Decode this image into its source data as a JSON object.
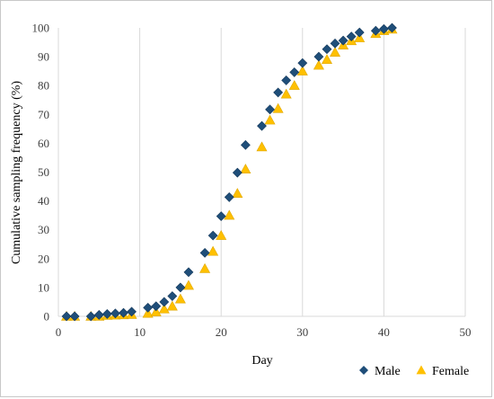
{
  "chart_data": {
    "type": "scatter",
    "xlabel": "Day",
    "ylabel": "Cumulative sampling frequency (%)",
    "xlim": [
      0,
      50
    ],
    "ylim": [
      0,
      100
    ],
    "x_ticks": [
      0,
      10,
      20,
      30,
      40,
      50
    ],
    "y_ticks": [
      0,
      10,
      20,
      30,
      40,
      50,
      60,
      70,
      80,
      90,
      100
    ],
    "grid": "vertical",
    "legend_position": "bottom-right",
    "series": [
      {
        "name": "Male",
        "marker": "diamond",
        "color": "#1f4e79",
        "points": [
          [
            1,
            0
          ],
          [
            2,
            0
          ],
          [
            4,
            0
          ],
          [
            5,
            0.5
          ],
          [
            6,
            0.8
          ],
          [
            7,
            1
          ],
          [
            8,
            1.2
          ],
          [
            9,
            1.6
          ],
          [
            11,
            3
          ],
          [
            12,
            3.5
          ],
          [
            13,
            5
          ],
          [
            14,
            7
          ],
          [
            15,
            10
          ],
          [
            16,
            15.3
          ],
          [
            18,
            22
          ],
          [
            19,
            28
          ],
          [
            20,
            34.7
          ],
          [
            21,
            41.3
          ],
          [
            22,
            49.8
          ],
          [
            23,
            59.4
          ],
          [
            25,
            66
          ],
          [
            26,
            71.7
          ],
          [
            27,
            77.6
          ],
          [
            28,
            81.8
          ],
          [
            29,
            84.6
          ],
          [
            30,
            87.8
          ],
          [
            32,
            90
          ],
          [
            33,
            92.6
          ],
          [
            34,
            94.6
          ],
          [
            35,
            95.6
          ],
          [
            36,
            97
          ],
          [
            37,
            98.4
          ],
          [
            39,
            99
          ],
          [
            40,
            99.6
          ],
          [
            41,
            100
          ]
        ]
      },
      {
        "name": "Female",
        "marker": "triangle",
        "color": "#ffc000",
        "points": [
          [
            1,
            0
          ],
          [
            2,
            0
          ],
          [
            4,
            0
          ],
          [
            5,
            0
          ],
          [
            6,
            0.3
          ],
          [
            7,
            0.4
          ],
          [
            8,
            0.5
          ],
          [
            9,
            0.6
          ],
          [
            11,
            1
          ],
          [
            12,
            1.5
          ],
          [
            13,
            2.5
          ],
          [
            14,
            3.5
          ],
          [
            15,
            6
          ],
          [
            16,
            10.7
          ],
          [
            18,
            16.5
          ],
          [
            19,
            22.5
          ],
          [
            20,
            28
          ],
          [
            21,
            35
          ],
          [
            22,
            42.6
          ],
          [
            23,
            51
          ],
          [
            25,
            58.7
          ],
          [
            26,
            68
          ],
          [
            27,
            72
          ],
          [
            28,
            77
          ],
          [
            29,
            80
          ],
          [
            30,
            85
          ],
          [
            32,
            87
          ],
          [
            33,
            89
          ],
          [
            34,
            91.5
          ],
          [
            35,
            94
          ],
          [
            36,
            95.5
          ],
          [
            37,
            96.5
          ],
          [
            39,
            98
          ],
          [
            40,
            99
          ],
          [
            41,
            99.5
          ]
        ]
      }
    ]
  }
}
